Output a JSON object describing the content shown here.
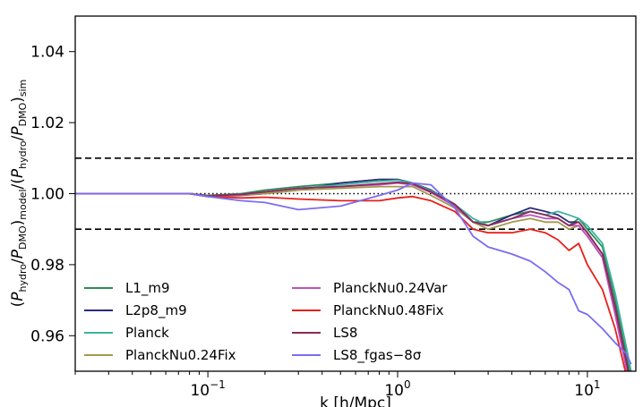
{
  "chart_data": {
    "type": "line",
    "title": "",
    "xlabel": "k [h/Mpc]",
    "ylabel_parts": {
      "open": "(",
      "p1": "P",
      "s1": "hydro",
      "slash1": "/",
      "p2": "P",
      "s2": "DMO",
      "close1": ")",
      "s3": "model",
      "slash2": "/(",
      "p3": "P",
      "s4": "hydro",
      "slash3": "/",
      "p4": "P",
      "s5": "DMO",
      "close2": ")",
      "s6": "sim"
    },
    "xscale": "log",
    "xlim": [
      0.02,
      18
    ],
    "ylim": [
      0.95,
      1.05
    ],
    "x_ticks": [
      {
        "value": 0.1,
        "base": "10",
        "exp": "−1"
      },
      {
        "value": 1,
        "base": "10",
        "exp": "0"
      },
      {
        "value": 10,
        "base": "10",
        "exp": "1"
      }
    ],
    "y_ticks": [
      {
        "value": 0.96,
        "label": "0.96"
      },
      {
        "value": 0.98,
        "label": "0.98"
      },
      {
        "value": 1.0,
        "label": "1.00"
      },
      {
        "value": 1.02,
        "label": "1.02"
      },
      {
        "value": 1.04,
        "label": "1.04"
      }
    ],
    "reference_lines": [
      {
        "y": 1.01,
        "style": "dashed"
      },
      {
        "y": 1.0,
        "style": "dotted"
      },
      {
        "y": 0.99,
        "style": "dashed"
      }
    ],
    "legend_position": "lower-left",
    "legend_columns": 2,
    "x": [
      0.02,
      0.05,
      0.08,
      0.1,
      0.15,
      0.2,
      0.3,
      0.5,
      0.8,
      1.0,
      1.2,
      1.5,
      2.0,
      2.5,
      3.0,
      4.0,
      5.0,
      6.0,
      7.0,
      8.0,
      9.0,
      10.0,
      12.0,
      14.0,
      16.0,
      17.0
    ],
    "series": [
      {
        "name": "L1_m9",
        "color": "#2e8b57",
        "values": [
          1.0,
          1.0,
          1.0,
          0.9995,
          1.0,
          1.001,
          1.002,
          1.003,
          1.004,
          1.004,
          1.003,
          1.001,
          0.997,
          0.992,
          0.992,
          0.994,
          0.995,
          0.994,
          0.993,
          0.991,
          0.993,
          0.99,
          0.985,
          0.97,
          0.955,
          0.948
        ]
      },
      {
        "name": "L2p8_m9",
        "color": "#2b2b7a",
        "values": [
          1.0,
          1.0,
          1.0,
          0.9992,
          0.9995,
          1.0,
          1.001,
          1.003,
          1.004,
          1.004,
          1.003,
          1.001,
          0.997,
          0.992,
          0.991,
          0.994,
          0.996,
          0.995,
          0.994,
          0.992,
          0.992,
          0.989,
          0.983,
          0.968,
          0.953,
          0.946
        ]
      },
      {
        "name": "Planck",
        "color": "#3cb3a0",
        "values": [
          1.0,
          1.0,
          1.0,
          0.9993,
          0.9998,
          1.0005,
          1.0015,
          1.0025,
          1.0035,
          1.0038,
          1.003,
          1.0008,
          0.997,
          0.993,
          0.991,
          0.993,
          0.995,
          0.994,
          0.995,
          0.994,
          0.993,
          0.991,
          0.986,
          0.972,
          0.957,
          0.95
        ]
      },
      {
        "name": "PlanckNu0.24Fix",
        "color": "#a39a4a",
        "values": [
          1.0,
          1.0,
          1.0,
          0.9993,
          0.9996,
          1.0,
          1.001,
          1.0015,
          1.002,
          1.002,
          1.002,
          0.9995,
          0.996,
          0.992,
          0.99,
          0.992,
          0.993,
          0.992,
          0.992,
          0.99,
          0.991,
          0.988,
          0.982,
          0.967,
          0.952,
          0.945
        ]
      },
      {
        "name": "PlanckNu0.24Var",
        "color": "#c050c0",
        "values": [
          1.0,
          1.0,
          1.0,
          0.9993,
          0.9997,
          1.0005,
          1.0015,
          1.002,
          1.0025,
          1.003,
          1.0025,
          1.0003,
          0.9965,
          0.992,
          0.991,
          0.993,
          0.994,
          0.993,
          0.993,
          0.991,
          0.991,
          0.988,
          0.982,
          0.966,
          0.951,
          0.944
        ]
      },
      {
        "name": "PlanckNu0.48Fix",
        "color": "#e8201a",
        "values": [
          1.0,
          1.0,
          1.0,
          0.9992,
          0.9988,
          0.999,
          0.9985,
          0.998,
          0.998,
          0.9988,
          0.9992,
          0.998,
          0.995,
          0.99,
          0.989,
          0.989,
          0.99,
          0.989,
          0.987,
          0.984,
          0.986,
          0.98,
          0.973,
          0.962,
          0.949,
          0.943
        ]
      },
      {
        "name": "LS8",
        "color": "#8b2a5a",
        "values": [
          1.0,
          1.0,
          1.0,
          0.9994,
          0.9998,
          1.0005,
          1.0015,
          1.002,
          1.0028,
          1.0032,
          1.0028,
          1.0005,
          0.997,
          0.992,
          0.991,
          0.993,
          0.995,
          0.994,
          0.993,
          0.991,
          0.992,
          0.989,
          0.983,
          0.968,
          0.953,
          0.946
        ]
      },
      {
        "name": "LS8_fgas−8σ",
        "color": "#7b6cf0",
        "values": [
          1.0,
          1.0,
          1.0,
          0.9992,
          0.998,
          0.9975,
          0.9955,
          0.9965,
          0.9995,
          1.001,
          1.003,
          1.0025,
          0.996,
          0.988,
          0.985,
          0.983,
          0.981,
          0.978,
          0.975,
          0.973,
          0.967,
          0.966,
          0.962,
          0.958,
          0.955,
          0.952
        ]
      }
    ]
  }
}
